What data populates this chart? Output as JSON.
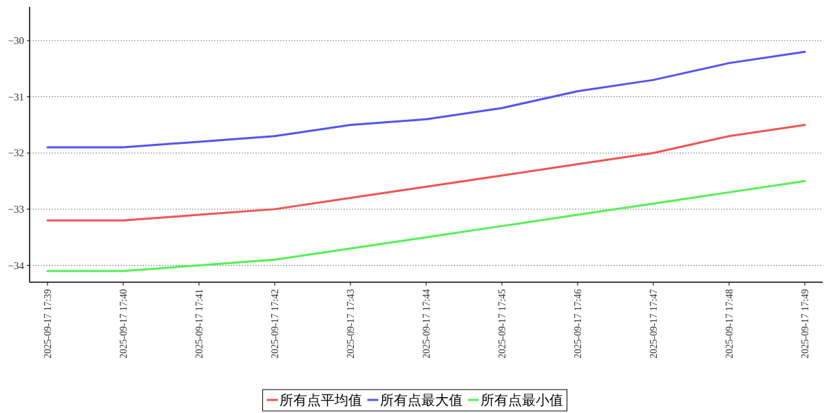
{
  "chart_data": {
    "type": "line",
    "categories": [
      "2025-09-17 17:39",
      "2025-09-17 17:40",
      "2025-09-17 17:41",
      "2025-09-17 17:42",
      "2025-09-17 17:43",
      "2025-09-17 17:44",
      "2025-09-17 17:45",
      "2025-09-17 17:46",
      "2025-09-17 17:47",
      "2025-09-17 17:48",
      "2025-09-17 17:49"
    ],
    "series": [
      {
        "name": "所有点平均值",
        "color": "#f05454",
        "values": [
          -33.2,
          -33.2,
          -33.1,
          -33.0,
          -32.8,
          -32.6,
          -32.4,
          -32.2,
          -32.0,
          -31.7,
          -31.5
        ]
      },
      {
        "name": "所有点最大值",
        "color": "#5454f0",
        "values": [
          -31.9,
          -31.9,
          -31.8,
          -31.7,
          -31.5,
          -31.4,
          -31.2,
          -30.9,
          -30.7,
          -30.4,
          -30.2
        ]
      },
      {
        "name": "所有点最小值",
        "color": "#54f054",
        "values": [
          -34.1,
          -34.1,
          -34.0,
          -33.9,
          -33.7,
          -33.5,
          -33.3,
          -33.1,
          -32.9,
          -32.7,
          -32.5
        ]
      }
    ],
    "ylim": [
      -34.3,
      -29.4
    ],
    "yticks": [
      {
        "value": -34,
        "label": "−34"
      },
      {
        "value": -33,
        "label": "−33"
      },
      {
        "value": -32,
        "label": "−32"
      },
      {
        "value": -31,
        "label": "−31"
      },
      {
        "value": -30,
        "label": "−30"
      }
    ],
    "grid": "y",
    "legend": "bottom",
    "line_style": "solid"
  }
}
